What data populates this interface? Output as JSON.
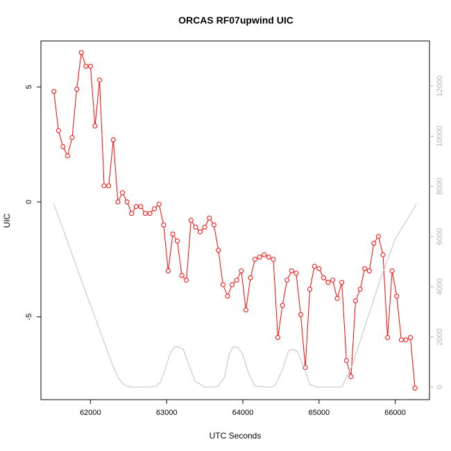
{
  "chart_data": {
    "type": "line",
    "title": "ORCAS RF07upwind UIC",
    "xlabel": "UTC Seconds",
    "ylabel": "UIC",
    "xlim": [
      61350,
      66450
    ],
    "ylim": [
      -8.6,
      7.0
    ],
    "y2lim": [
      -500,
      13800
    ],
    "x_ticks": [
      62000,
      63000,
      64000,
      65000,
      66000
    ],
    "x_tick_labels": [
      "62000",
      "63000",
      "64000",
      "65000",
      "66000"
    ],
    "y_ticks": [
      5,
      0,
      -5
    ],
    "y_tick_labels": [
      "5",
      "0",
      "-5"
    ],
    "y2_ticks": [
      0,
      2000,
      4000,
      6000,
      8000,
      10000,
      12000
    ],
    "y2_tick_labels": [
      "0",
      "2000",
      "4000",
      "6000",
      "8000",
      "10000",
      "12000"
    ],
    "grid": false,
    "series": [
      {
        "axis": "left",
        "color": "#ff0000",
        "marker": "open-circle",
        "x": [
          61520,
          61580,
          61640,
          61700,
          61760,
          61820,
          61880,
          61940,
          62000,
          62060,
          62120,
          62180,
          62240,
          62300,
          62360,
          62420,
          62480,
          62540,
          62600,
          62660,
          62720,
          62780,
          62840,
          62900,
          62960,
          63020,
          63080,
          63140,
          63200,
          63260,
          63320,
          63380,
          63440,
          63500,
          63560,
          63620,
          63680,
          63740,
          63800,
          63860,
          63920,
          63980,
          64040,
          64100,
          64160,
          64220,
          64280,
          64340,
          64400,
          64460,
          64520,
          64580,
          64640,
          64700,
          64760,
          64820,
          64880,
          64940,
          65000,
          65060,
          65120,
          65180,
          65240,
          65300,
          65360,
          65420,
          65480,
          65540,
          65600,
          65660,
          65720,
          65780,
          65840,
          65900,
          65960,
          66020,
          66080,
          66140,
          66200,
          66260
        ],
        "values": [
          4.8,
          3.1,
          2.4,
          2.0,
          2.8,
          4.9,
          6.5,
          5.9,
          5.9,
          3.3,
          5.3,
          0.7,
          0.7,
          2.7,
          0.0,
          0.4,
          0.0,
          -0.5,
          -0.2,
          -0.2,
          -0.5,
          -0.5,
          -0.3,
          -0.1,
          -1.0,
          -3.0,
          -1.4,
          -1.7,
          -3.2,
          -3.4,
          -0.8,
          -1.1,
          -1.3,
          -1.1,
          -0.7,
          -1.0,
          -2.1,
          -3.6,
          -4.1,
          -3.6,
          -3.4,
          -3.0,
          -4.7,
          -3.3,
          -2.5,
          -2.4,
          -2.3,
          -2.4,
          -2.5,
          -5.9,
          -4.5,
          -3.4,
          -3.0,
          -3.1,
          -4.9,
          -7.2,
          -3.8,
          -2.8,
          -2.9,
          -3.3,
          -3.5,
          -3.4,
          -4.2,
          -3.5,
          -6.9,
          -7.6,
          -4.3,
          -3.8,
          -2.9,
          -3.0,
          -1.8,
          -1.5,
          -2.3,
          -5.9,
          -3.0,
          -4.1,
          -6.0,
          -6.0,
          -5.9,
          -8.1
        ]
      },
      {
        "axis": "right",
        "color": "#c0c0c0",
        "marker": "none",
        "x": [
          61520,
          61700,
          61900,
          62100,
          62300,
          62380,
          62440,
          62520,
          62650,
          62800,
          62870,
          62920,
          62980,
          63040,
          63100,
          63160,
          63220,
          63290,
          63370,
          63500,
          63620,
          63680,
          63760,
          63820,
          63870,
          63930,
          64000,
          64080,
          64160,
          64300,
          64380,
          64430,
          64520,
          64600,
          64660,
          64720,
          64800,
          64880,
          64980,
          65100,
          65200,
          65300,
          65440,
          65600,
          65800,
          66000,
          66280
        ],
        "values": [
          7300,
          5800,
          4100,
          2450,
          800,
          300,
          100,
          0,
          0,
          0,
          50,
          200,
          700,
          1300,
          1600,
          1600,
          1500,
          900,
          250,
          0,
          0,
          50,
          400,
          1300,
          1600,
          1600,
          1300,
          500,
          50,
          0,
          0,
          100,
          700,
          1450,
          1500,
          1400,
          800,
          100,
          0,
          0,
          0,
          0,
          900,
          2400,
          4250,
          5900,
          7300
        ]
      }
    ]
  }
}
